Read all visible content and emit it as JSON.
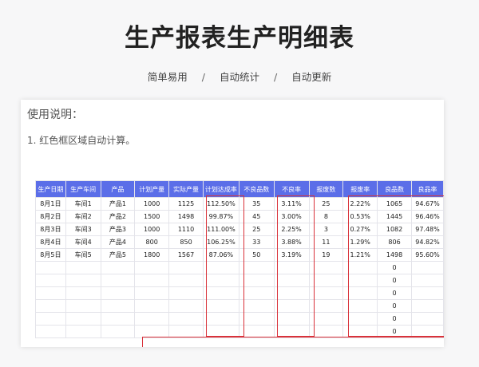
{
  "page": {
    "title": "生产报表生产明细表",
    "subtitles": [
      "简单易用",
      "自动统计",
      "自动更新"
    ],
    "separator": "/"
  },
  "card": {
    "heading": "使用说明：",
    "note": "1. 红色框区域自动计算。"
  },
  "table": {
    "columns": [
      "生产日期",
      "生产车间",
      "产品",
      "计划产量",
      "实际产量",
      "计划达成率",
      "不良品数",
      "不良率",
      "报废数",
      "报废率",
      "良品数",
      "良品率"
    ],
    "rows": [
      [
        "8月1日",
        "车间1",
        "产品1",
        "1000",
        "1125",
        "112.50%",
        "35",
        "3.11%",
        "25",
        "2.22%",
        "1065",
        "94.67%"
      ],
      [
        "8月2日",
        "车间2",
        "产品2",
        "1500",
        "1498",
        "99.87%",
        "45",
        "3.00%",
        "8",
        "0.53%",
        "1445",
        "96.46%"
      ],
      [
        "8月3日",
        "车间3",
        "产品3",
        "1000",
        "1110",
        "111.00%",
        "25",
        "2.25%",
        "3",
        "0.27%",
        "1082",
        "97.48%"
      ],
      [
        "8月4日",
        "车间4",
        "产品4",
        "800",
        "850",
        "106.25%",
        "33",
        "3.88%",
        "11",
        "1.29%",
        "806",
        "94.82%"
      ],
      [
        "8月5日",
        "车间5",
        "产品5",
        "1800",
        "1567",
        "87.06%",
        "50",
        "3.19%",
        "19",
        "1.21%",
        "1498",
        "95.60%"
      ],
      [
        "",
        "",
        "",
        "",
        "",
        "",
        "",
        "",
        "",
        "",
        "0",
        ""
      ],
      [
        "",
        "",
        "",
        "",
        "",
        "",
        "",
        "",
        "",
        "",
        "0",
        ""
      ],
      [
        "",
        "",
        "",
        "",
        "",
        "",
        "",
        "",
        "",
        "",
        "0",
        ""
      ],
      [
        "",
        "",
        "",
        "",
        "",
        "",
        "",
        "",
        "",
        "",
        "0",
        ""
      ],
      [
        "",
        "",
        "",
        "",
        "",
        "",
        "",
        "",
        "",
        "",
        "0",
        ""
      ],
      [
        "",
        "",
        "",
        "",
        "",
        "",
        "",
        "",
        "",
        "",
        "0",
        ""
      ]
    ],
    "header_color": "#5b6ee8",
    "highlight_color": "#d9323a"
  }
}
